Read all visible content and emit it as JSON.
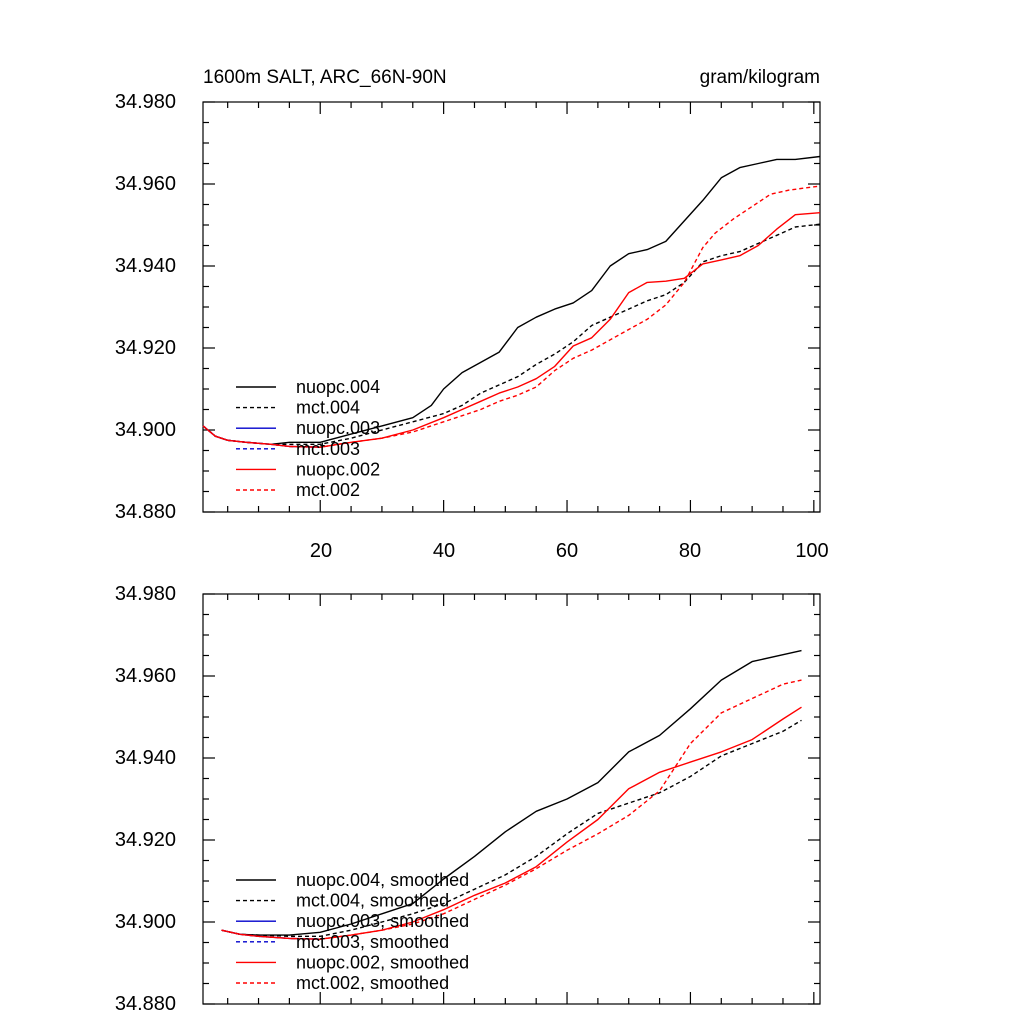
{
  "chart_data": [
    {
      "type": "line",
      "title": "1600m SALT, ARC_66N-90N",
      "units": "gram/kilogram",
      "xlabel": "",
      "ylabel": "",
      "xlim": [
        1,
        101
      ],
      "ylim": [
        34.88,
        34.98
      ],
      "xticks": [
        20,
        40,
        60,
        80,
        100
      ],
      "xtick_labels": [
        "20",
        "40",
        "60",
        "80",
        "100"
      ],
      "yticks": [
        34.88,
        34.9,
        34.92,
        34.94,
        34.96,
        34.98
      ],
      "ytick_labels": [
        "34.880",
        "34.900",
        "34.920",
        "34.940",
        "34.960",
        "34.980"
      ],
      "legend_position": "bottom-left",
      "series": [
        {
          "name": "nuopc.004",
          "color": "#000000",
          "dash": "solid",
          "x": [
            1,
            3,
            5,
            8,
            12,
            15,
            20,
            25,
            30,
            35,
            38,
            40,
            43,
            46,
            49,
            52,
            55,
            58,
            61,
            64,
            67,
            70,
            73,
            76,
            79,
            82,
            85,
            88,
            91,
            94,
            97,
            101
          ],
          "y": [
            34.901,
            34.8985,
            34.8975,
            34.897,
            34.8965,
            34.897,
            34.897,
            34.899,
            34.901,
            34.903,
            34.906,
            34.91,
            34.914,
            34.9165,
            34.919,
            34.925,
            34.9275,
            34.9295,
            34.931,
            34.934,
            34.94,
            34.943,
            34.944,
            34.946,
            34.951,
            34.956,
            34.9615,
            34.964,
            34.965,
            34.966,
            34.966,
            34.9667
          ]
        },
        {
          "name": "mct.004",
          "color": "#000000",
          "dash": "dashed",
          "x": [
            1,
            3,
            5,
            8,
            12,
            15,
            20,
            25,
            30,
            35,
            40,
            43,
            46,
            49,
            52,
            55,
            58,
            61,
            64,
            67,
            70,
            73,
            76,
            79,
            82,
            85,
            88,
            91,
            94,
            97,
            101
          ],
          "y": [
            34.901,
            34.8985,
            34.8975,
            34.897,
            34.8965,
            34.8965,
            34.8965,
            34.898,
            34.9,
            34.902,
            34.904,
            34.906,
            34.909,
            34.911,
            34.913,
            34.916,
            34.9185,
            34.9215,
            34.9255,
            34.9275,
            34.9295,
            34.9315,
            34.933,
            34.936,
            34.941,
            34.9425,
            34.9435,
            34.9455,
            34.9475,
            34.9495,
            34.9502
          ]
        },
        {
          "name": "nuopc.003",
          "color": "#0000cc",
          "dash": "solid",
          "x": [
            1,
            3,
            5,
            8,
            12,
            15,
            20
          ],
          "y": [
            34.901,
            34.8985,
            34.8975,
            34.897,
            34.8965,
            34.896,
            34.8958
          ]
        },
        {
          "name": "mct.003",
          "color": "#0000cc",
          "dash": "dashed",
          "x": [
            1,
            3,
            5,
            8,
            12,
            15,
            20
          ],
          "y": [
            34.901,
            34.8985,
            34.8975,
            34.897,
            34.8965,
            34.896,
            34.8958
          ]
        },
        {
          "name": "nuopc.002",
          "color": "#ff0000",
          "dash": "solid",
          "x": [
            1,
            3,
            5,
            8,
            12,
            15,
            20,
            25,
            30,
            35,
            40,
            43,
            46,
            49,
            52,
            55,
            58,
            61,
            64,
            67,
            70,
            73,
            76,
            79,
            82,
            85,
            88,
            91,
            94,
            97,
            101
          ],
          "y": [
            34.901,
            34.8985,
            34.8975,
            34.897,
            34.8965,
            34.896,
            34.8958,
            34.897,
            34.898,
            34.9,
            34.903,
            34.905,
            34.907,
            34.909,
            34.9105,
            34.9125,
            34.9155,
            34.9205,
            34.9225,
            34.927,
            34.9335,
            34.936,
            34.9363,
            34.937,
            34.9405,
            34.9415,
            34.9425,
            34.945,
            34.949,
            34.9525,
            34.953
          ]
        },
        {
          "name": "mct.002",
          "color": "#ff0000",
          "dash": "dashed",
          "x": [
            1,
            3,
            5,
            8,
            12,
            15,
            20,
            25,
            30,
            35,
            40,
            43,
            46,
            49,
            52,
            55,
            58,
            61,
            64,
            67,
            70,
            73,
            76,
            79,
            82,
            84,
            87,
            90,
            93,
            96,
            101
          ],
          "y": [
            34.901,
            34.8985,
            34.8975,
            34.897,
            34.8965,
            34.896,
            34.8958,
            34.897,
            34.898,
            34.8995,
            34.902,
            34.9035,
            34.905,
            34.907,
            34.9085,
            34.9105,
            34.9145,
            34.9175,
            34.9195,
            34.922,
            34.9245,
            34.927,
            34.9305,
            34.936,
            34.9445,
            34.948,
            34.9515,
            34.9545,
            34.9575,
            34.9585,
            34.9595
          ]
        }
      ]
    },
    {
      "type": "line",
      "title": "",
      "xlabel": "",
      "ylabel": "",
      "xlim": [
        1,
        101
      ],
      "ylim": [
        34.88,
        34.98
      ],
      "xticks": [
        20,
        40,
        60,
        80,
        100
      ],
      "yticks": [
        34.88,
        34.9,
        34.92,
        34.94,
        34.96,
        34.98
      ],
      "ytick_labels": [
        "34.880",
        "34.900",
        "34.920",
        "34.940",
        "34.960",
        "34.980"
      ],
      "legend_position": "bottom-left",
      "series": [
        {
          "name": "nuopc.004, smoothed",
          "color": "#000000",
          "dash": "solid",
          "x": [
            4,
            7,
            10,
            15,
            20,
            25,
            30,
            35,
            40,
            45,
            50,
            55,
            60,
            65,
            70,
            75,
            80,
            85,
            90,
            95,
            98
          ],
          "y": [
            34.898,
            34.897,
            34.8968,
            34.8968,
            34.8975,
            34.8995,
            34.902,
            34.9045,
            34.9105,
            34.916,
            34.922,
            34.927,
            34.93,
            34.934,
            34.9415,
            34.9455,
            34.952,
            34.959,
            34.9635,
            34.9652,
            34.9662
          ]
        },
        {
          "name": "mct.004, smoothed",
          "color": "#000000",
          "dash": "dashed",
          "x": [
            4,
            7,
            10,
            15,
            20,
            25,
            30,
            35,
            40,
            45,
            50,
            55,
            60,
            65,
            70,
            75,
            80,
            85,
            90,
            95,
            98
          ],
          "y": [
            34.898,
            34.897,
            34.8968,
            34.8965,
            34.8965,
            34.898,
            34.9,
            34.902,
            34.9045,
            34.908,
            34.9115,
            34.916,
            34.9215,
            34.9265,
            34.929,
            34.9315,
            34.9355,
            34.9405,
            34.9435,
            34.9465,
            34.9492
          ]
        },
        {
          "name": "nuopc.003, smoothed",
          "color": "#0000cc",
          "dash": "solid",
          "x": [
            4,
            7,
            10,
            15,
            20
          ],
          "y": [
            34.898,
            34.897,
            34.8965,
            34.896,
            34.8958
          ]
        },
        {
          "name": "mct.003, smoothed",
          "color": "#0000cc",
          "dash": "dashed",
          "x": [
            4,
            7,
            10,
            15,
            20
          ],
          "y": [
            34.898,
            34.897,
            34.8965,
            34.896,
            34.8958
          ]
        },
        {
          "name": "nuopc.002, smoothed",
          "color": "#ff0000",
          "dash": "solid",
          "x": [
            4,
            7,
            10,
            15,
            20,
            25,
            30,
            35,
            40,
            45,
            50,
            55,
            60,
            65,
            70,
            75,
            80,
            85,
            90,
            95,
            98
          ],
          "y": [
            34.898,
            34.897,
            34.8965,
            34.896,
            34.8958,
            34.8968,
            34.898,
            34.9,
            34.903,
            34.9065,
            34.9095,
            34.9135,
            34.9195,
            34.925,
            34.9325,
            34.9365,
            34.939,
            34.9415,
            34.9445,
            34.9495,
            34.9524
          ]
        },
        {
          "name": "mct.002, smoothed",
          "color": "#ff0000",
          "dash": "dashed",
          "x": [
            4,
            7,
            10,
            15,
            20,
            25,
            30,
            35,
            40,
            45,
            50,
            55,
            60,
            65,
            70,
            75,
            80,
            85,
            90,
            95,
            98
          ],
          "y": [
            34.898,
            34.897,
            34.8965,
            34.896,
            34.8958,
            34.8968,
            34.898,
            34.8995,
            34.902,
            34.9055,
            34.909,
            34.913,
            34.9175,
            34.9215,
            34.926,
            34.932,
            34.9435,
            34.951,
            34.9545,
            34.958,
            34.959
          ]
        }
      ]
    }
  ]
}
